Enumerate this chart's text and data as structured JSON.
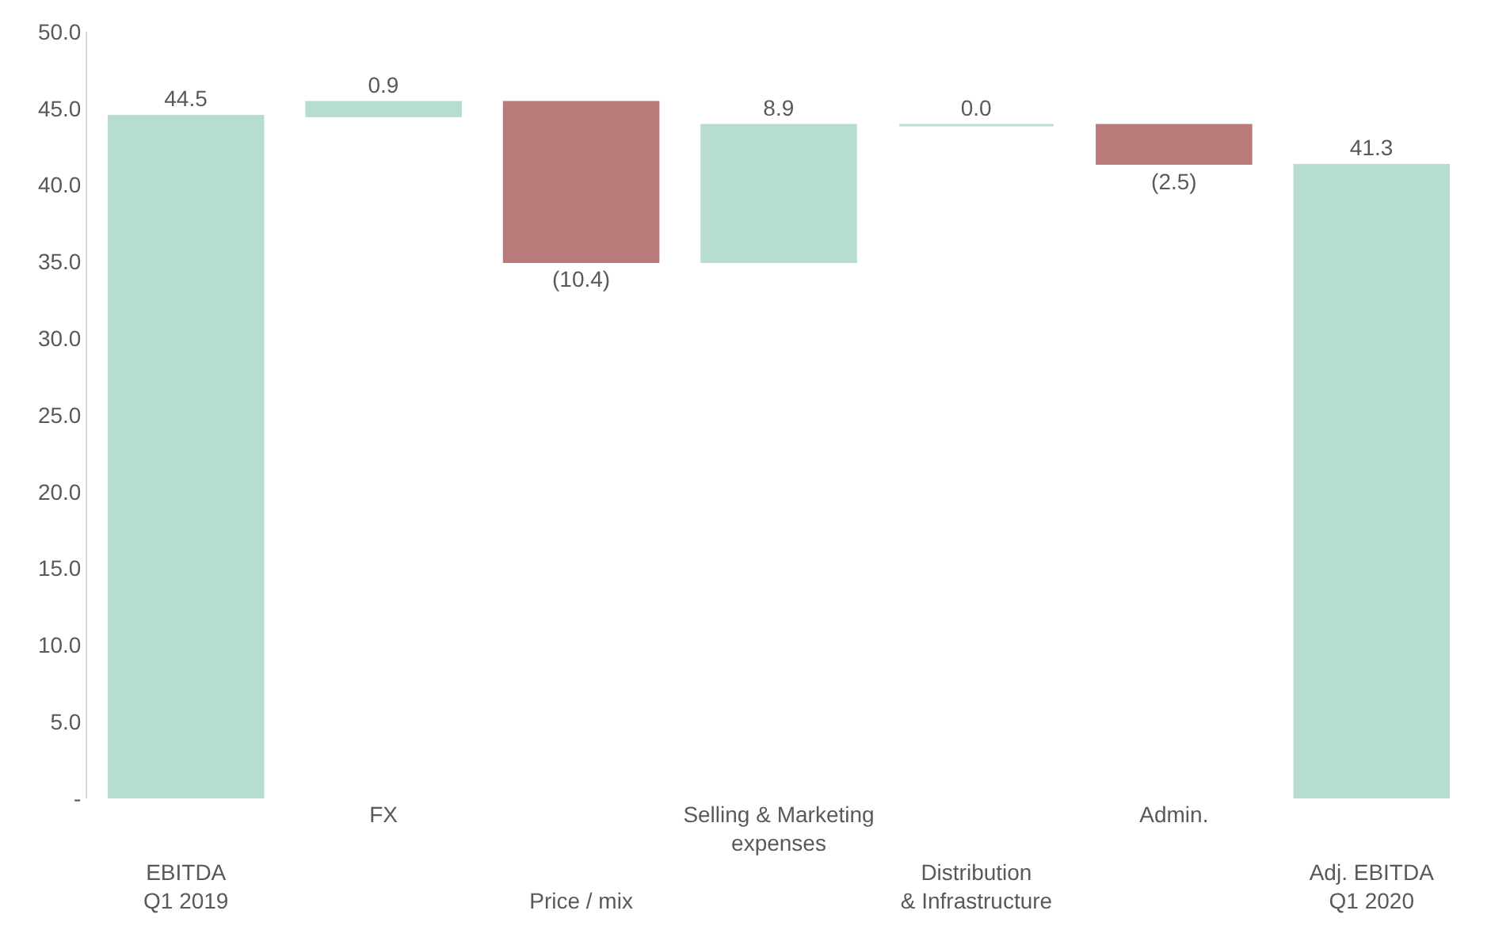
{
  "chart_data": {
    "type": "bar",
    "categories": [
      "EBITDA\nQ1 2019",
      "FX",
      "Price / mix",
      "Selling & Marketing\nexpenses",
      "Distribution\n& Infrastructure",
      "Admin.",
      "Adj. EBITDA\nQ1 2020"
    ],
    "values": [
      44.5,
      0.9,
      -10.4,
      8.9,
      0.0,
      -2.5,
      41.3
    ],
    "base": [
      0,
      44.5,
      45.4,
      35.0,
      43.9,
      43.9,
      0
    ],
    "colors": [
      "#b7ddd3",
      "#b7ddd3",
      "#b97a7a",
      "#b7ddd3",
      "#b7ddd3",
      "#b97a7a",
      "#b7ddd3"
    ],
    "value_labels": [
      "44.5",
      "0.9",
      "(10.4)",
      "8.9",
      "0.0",
      "(2.5)",
      "41.3"
    ],
    "ylim": [
      0,
      50
    ],
    "yticks": [
      {
        "value": 0,
        "label": "-"
      },
      {
        "value": 5,
        "label": "5.0"
      },
      {
        "value": 10,
        "label": "10.0"
      },
      {
        "value": 15,
        "label": "15.0"
      },
      {
        "value": 20,
        "label": "20.0"
      },
      {
        "value": 25,
        "label": "25.0"
      },
      {
        "value": 30,
        "label": "30.0"
      },
      {
        "value": 35,
        "label": "35.0"
      },
      {
        "value": 40,
        "label": "40.0"
      },
      {
        "value": 45,
        "label": "45.0"
      },
      {
        "value": 50,
        "label": "50.0"
      }
    ]
  }
}
